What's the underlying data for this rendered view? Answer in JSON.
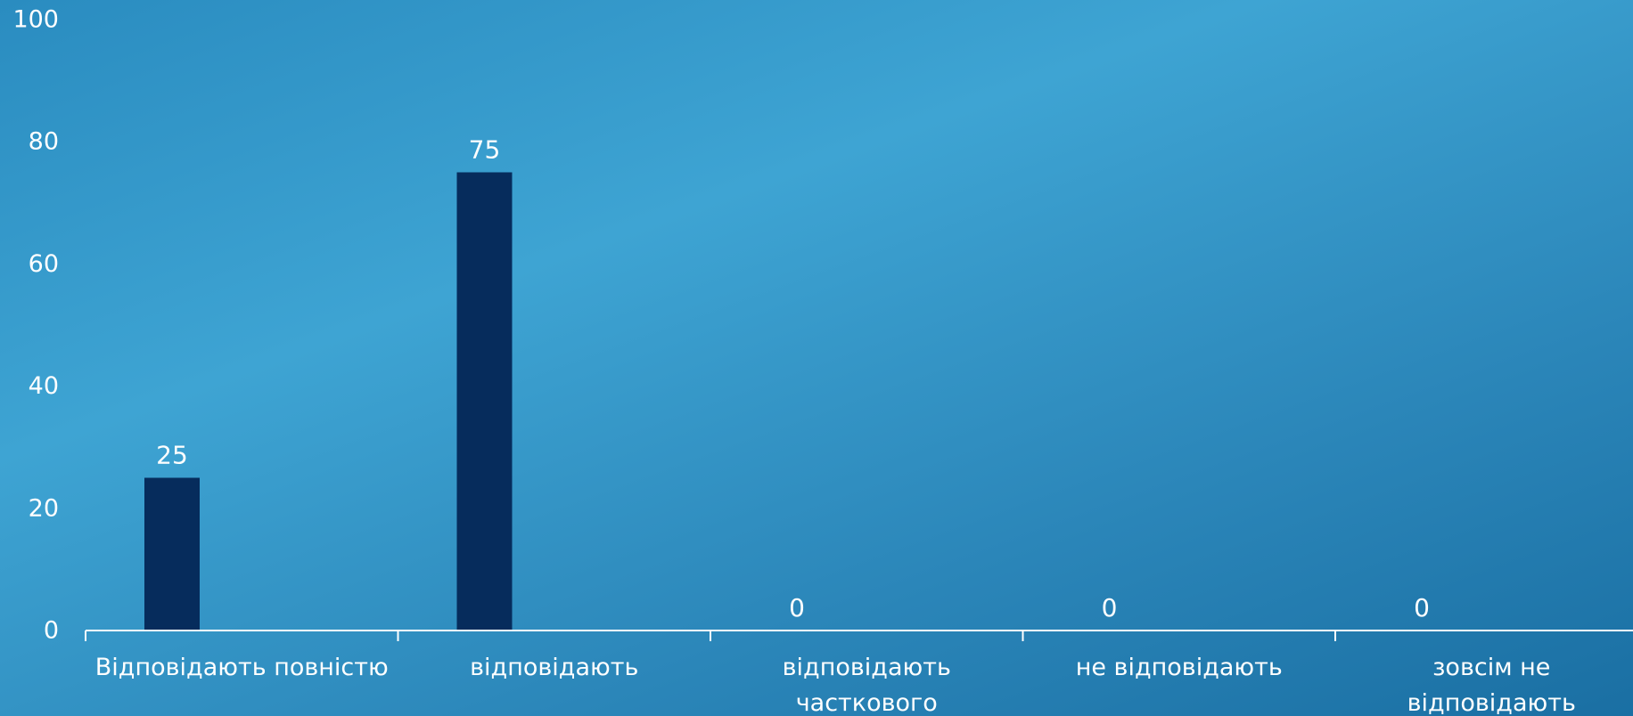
{
  "chart_data": {
    "type": "bar",
    "categories": [
      [
        "Відповідають повністю"
      ],
      [
        "відповідають"
      ],
      [
        "відповідають",
        "часткового"
      ],
      [
        "не відповідають"
      ],
      [
        "зовсім не",
        "відповідають"
      ]
    ],
    "values": [
      25,
      75,
      0,
      0,
      0
    ],
    "ylim": [
      0,
      100
    ],
    "yticks": [
      0,
      20,
      40,
      60,
      80,
      100
    ],
    "grid": false,
    "legend": "none",
    "colors": {
      "bar": "#062c5c",
      "axis": "#ffffff",
      "text": "#ffffff"
    }
  }
}
